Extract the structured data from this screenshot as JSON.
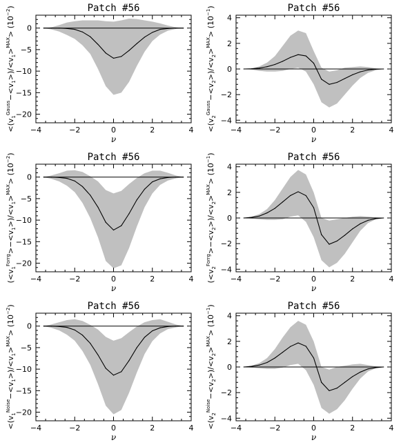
{
  "chart_data": [
    {
      "type": "line",
      "title": "Patch #56",
      "xlabel": "ν",
      "ylabel": {
        "pre": "<(v",
        "sub": "1",
        "sup": "Gauss",
        "mid": "−<v",
        "sub2": "1",
        "post": ">)/<v",
        "sub3": "1",
        "post2": ">",
        "supMax": "MAX",
        "post3": "> (10",
        "exp": "−2",
        "close": ")"
      },
      "xlim": [
        -4,
        4
      ],
      "ylim": [
        -22,
        3
      ],
      "xticks": [
        -4,
        -2,
        0,
        2,
        4
      ],
      "yticks": [
        0,
        -5,
        -10,
        -15,
        -20
      ],
      "x": [
        -3.6,
        -3.2,
        -2.8,
        -2.4,
        -2.0,
        -1.6,
        -1.2,
        -0.8,
        -0.4,
        0.0,
        0.4,
        0.8,
        1.2,
        1.6,
        2.0,
        2.4,
        2.8,
        3.2,
        3.6
      ],
      "mean": [
        0.0,
        0.0,
        0.0,
        -0.1,
        -0.3,
        -0.9,
        -2.0,
        -3.8,
        -5.8,
        -7.0,
        -6.6,
        -5.2,
        -3.6,
        -2.1,
        -1.0,
        -0.3,
        -0.1,
        0.0,
        0.0
      ],
      "upper": [
        0.0,
        0.2,
        0.7,
        1.3,
        1.6,
        1.8,
        1.8,
        1.8,
        1.6,
        1.5,
        1.8,
        2.2,
        2.1,
        1.8,
        1.5,
        1.1,
        0.6,
        0.2,
        0.0
      ],
      "lower": [
        0.0,
        -0.3,
        -0.8,
        -1.6,
        -2.5,
        -4.0,
        -6.0,
        -9.5,
        -13.5,
        -15.5,
        -15.0,
        -12.5,
        -8.8,
        -5.5,
        -3.0,
        -1.5,
        -0.6,
        -0.2,
        0.0
      ]
    },
    {
      "type": "line",
      "title": "Patch #56",
      "xlabel": "ν",
      "ylabel": {
        "pre": "<(v",
        "sub": "2",
        "sup": "Gauss",
        "mid": "−<v",
        "sub2": "2",
        "post": ">)/<v",
        "sub3": "2",
        "post2": ">",
        "supMax": "MAX",
        "post3": "> (10",
        "exp": "−1",
        "close": ")"
      },
      "xlim": [
        -4,
        4
      ],
      "ylim": [
        -4.2,
        4.2
      ],
      "xticks": [
        -4,
        -2,
        0,
        2,
        4
      ],
      "yticks": [
        4,
        2,
        0,
        -2,
        -4
      ],
      "x": [
        -3.6,
        -3.2,
        -2.8,
        -2.4,
        -2.0,
        -1.6,
        -1.2,
        -0.8,
        -0.4,
        0.0,
        0.4,
        0.8,
        1.2,
        1.6,
        2.0,
        2.4,
        2.8,
        3.2,
        3.6
      ],
      "mean": [
        0.0,
        0.02,
        0.07,
        0.18,
        0.35,
        0.6,
        0.9,
        1.12,
        1.02,
        0.45,
        -0.8,
        -1.2,
        -1.05,
        -0.75,
        -0.45,
        -0.22,
        -0.08,
        -0.02,
        0.0
      ],
      "upper": [
        0.0,
        0.05,
        0.2,
        0.5,
        1.0,
        1.8,
        2.6,
        3.0,
        2.8,
        1.4,
        0.1,
        -0.2,
        -0.1,
        0.1,
        0.15,
        0.2,
        0.15,
        0.05,
        0.0
      ],
      "lower": [
        0.0,
        -0.05,
        -0.15,
        -0.2,
        -0.2,
        -0.15,
        0.0,
        0.1,
        -0.2,
        -1.2,
        -2.6,
        -3.0,
        -2.7,
        -2.0,
        -1.3,
        -0.7,
        -0.3,
        -0.1,
        0.0
      ]
    },
    {
      "type": "line",
      "title": "Patch #56",
      "xlabel": "ν",
      "ylabel": {
        "pre": "(<v",
        "sub": "1",
        "sup": "Forrg",
        "mid": ">−<v",
        "sub2": "1",
        "post": ">)/<v",
        "sub3": "1",
        "post2": ">",
        "supMax": "MAX",
        "post3": "> (10",
        "exp": "−2",
        "close": ")"
      },
      "xlim": [
        -4,
        4
      ],
      "ylim": [
        -22,
        3
      ],
      "xticks": [
        -4,
        -2,
        0,
        2,
        4
      ],
      "yticks": [
        0,
        -5,
        -10,
        -15,
        -20
      ],
      "x": [
        -3.6,
        -3.2,
        -2.8,
        -2.4,
        -2.0,
        -1.6,
        -1.2,
        -0.8,
        -0.4,
        0.0,
        0.4,
        0.8,
        1.2,
        1.6,
        2.0,
        2.4,
        2.8,
        3.2,
        3.6
      ],
      "mean": [
        0.0,
        0.0,
        -0.1,
        -0.3,
        -0.9,
        -2.2,
        -4.2,
        -7.0,
        -10.5,
        -12.3,
        -11.3,
        -8.5,
        -5.3,
        -2.8,
        -1.1,
        -0.4,
        -0.1,
        0.0,
        0.0
      ],
      "upper": [
        0.0,
        0.4,
        0.9,
        1.5,
        1.6,
        1.2,
        0.2,
        -1.0,
        -3.0,
        -3.8,
        -3.2,
        -1.6,
        -0.2,
        0.9,
        1.5,
        1.5,
        1.0,
        0.4,
        0.0
      ],
      "lower": [
        0.0,
        -0.4,
        -1.0,
        -2.0,
        -3.5,
        -6.0,
        -9.5,
        -14.0,
        -19.5,
        -21.2,
        -20.5,
        -16.5,
        -11.5,
        -7.0,
        -3.8,
        -1.8,
        -0.8,
        -0.3,
        0.0
      ]
    },
    {
      "type": "line",
      "title": "Patch #56",
      "xlabel": "ν",
      "ylabel": {
        "pre": "(<v",
        "sub": "2",
        "sup": "Forrg",
        "mid": ">−<v",
        "sub2": "2",
        "post": ">)/<v",
        "sub3": "2",
        "post2": ">",
        "supMax": "MAX",
        "post3": "> (10",
        "exp": "−1",
        "close": ")"
      },
      "xlim": [
        -4,
        4
      ],
      "ylim": [
        -4.2,
        4.2
      ],
      "xticks": [
        -4,
        -2,
        0,
        2,
        4
      ],
      "yticks": [
        4,
        2,
        0,
        -2,
        -4
      ],
      "x": [
        -3.6,
        -3.2,
        -2.8,
        -2.4,
        -2.0,
        -1.6,
        -1.2,
        -0.8,
        -0.4,
        0.0,
        0.4,
        0.8,
        1.2,
        1.6,
        2.0,
        2.4,
        2.8,
        3.2,
        3.6
      ],
      "mean": [
        0.0,
        0.05,
        0.15,
        0.4,
        0.75,
        1.25,
        1.75,
        2.05,
        1.75,
        0.8,
        -1.3,
        -2.05,
        -1.8,
        -1.35,
        -0.85,
        -0.45,
        -0.18,
        -0.05,
        0.0
      ],
      "upper": [
        0.0,
        0.1,
        0.3,
        0.7,
        1.4,
        2.3,
        3.2,
        3.75,
        3.4,
        2.0,
        0.0,
        -0.2,
        -0.1,
        0.0,
        0.1,
        0.15,
        0.1,
        0.05,
        0.0
      ],
      "lower": [
        0.0,
        -0.05,
        -0.1,
        -0.15,
        -0.15,
        -0.1,
        0.1,
        0.2,
        -0.3,
        -1.5,
        -3.3,
        -3.85,
        -3.5,
        -2.8,
        -1.9,
        -1.0,
        -0.4,
        -0.1,
        0.0
      ]
    },
    {
      "type": "line",
      "title": "Patch #56",
      "xlabel": "ν",
      "ylabel": {
        "pre": "<(v",
        "sub": "1",
        "sup": "Noise",
        "mid": "−<v",
        "sub2": "1",
        "post": ">)/<v",
        "sub3": "1",
        "post2": ">",
        "supMax": "MAX",
        "post3": "> (10",
        "exp": "−2",
        "close": ")"
      },
      "xlim": [
        -4,
        4
      ],
      "ylim": [
        -22,
        3
      ],
      "xticks": [
        -4,
        -2,
        0,
        2,
        4
      ],
      "yticks": [
        0,
        -5,
        -10,
        -15,
        -20
      ],
      "x": [
        -3.6,
        -3.2,
        -2.8,
        -2.4,
        -2.0,
        -1.6,
        -1.2,
        -0.8,
        -0.4,
        0.0,
        0.4,
        0.8,
        1.2,
        1.6,
        2.0,
        2.4,
        2.8,
        3.2,
        3.6
      ],
      "mean": [
        0.0,
        0.0,
        -0.1,
        -0.3,
        -0.9,
        -2.1,
        -4.0,
        -6.7,
        -9.8,
        -11.4,
        -10.6,
        -8.0,
        -5.0,
        -2.6,
        -1.1,
        -0.4,
        -0.1,
        0.0,
        0.0
      ],
      "upper": [
        0.0,
        0.4,
        0.9,
        1.4,
        1.6,
        1.2,
        0.3,
        -0.8,
        -2.5,
        -3.4,
        -2.8,
        -1.4,
        -0.1,
        0.9,
        1.4,
        1.6,
        1.0,
        0.4,
        0.0
      ],
      "lower": [
        0.0,
        -0.4,
        -1.0,
        -2.0,
        -3.4,
        -5.8,
        -9.0,
        -13.5,
        -18.5,
        -20.5,
        -19.5,
        -15.5,
        -10.8,
        -6.5,
        -3.5,
        -1.7,
        -0.7,
        -0.3,
        0.0
      ]
    },
    {
      "type": "line",
      "title": "Patch #56",
      "xlabel": "ν",
      "ylabel": {
        "pre": "<(v",
        "sub": "2",
        "sup": "Noise",
        "mid": "−<v",
        "sub2": "2",
        "post": ">)/<v",
        "sub3": "2",
        "post2": ">",
        "supMax": "MAX",
        "post3": "> (10",
        "exp": "−1",
        "close": ")"
      },
      "xlim": [
        -4,
        4
      ],
      "ylim": [
        -4.2,
        4.2
      ],
      "xticks": [
        -4,
        -2,
        0,
        2,
        4
      ],
      "yticks": [
        4,
        2,
        0,
        -2,
        -4
      ],
      "x": [
        -3.6,
        -3.2,
        -2.8,
        -2.4,
        -2.0,
        -1.6,
        -1.2,
        -0.8,
        -0.4,
        0.0,
        0.4,
        0.8,
        1.2,
        1.6,
        2.0,
        2.4,
        2.8,
        3.2,
        3.6
      ],
      "mean": [
        0.0,
        0.05,
        0.15,
        0.35,
        0.7,
        1.15,
        1.6,
        1.88,
        1.62,
        0.7,
        -1.2,
        -1.85,
        -1.65,
        -1.2,
        -0.75,
        -0.4,
        -0.15,
        -0.05,
        0.0
      ],
      "upper": [
        0.0,
        0.1,
        0.3,
        0.7,
        1.4,
        2.3,
        3.1,
        3.6,
        3.3,
        2.0,
        0.0,
        -0.2,
        0.0,
        0.1,
        0.2,
        0.25,
        0.15,
        0.05,
        0.0
      ],
      "lower": [
        0.0,
        -0.05,
        -0.1,
        -0.15,
        -0.15,
        -0.05,
        0.15,
        0.25,
        -0.25,
        -1.4,
        -3.2,
        -3.65,
        -3.3,
        -2.6,
        -1.7,
        -0.9,
        -0.35,
        -0.1,
        0.0
      ]
    }
  ]
}
